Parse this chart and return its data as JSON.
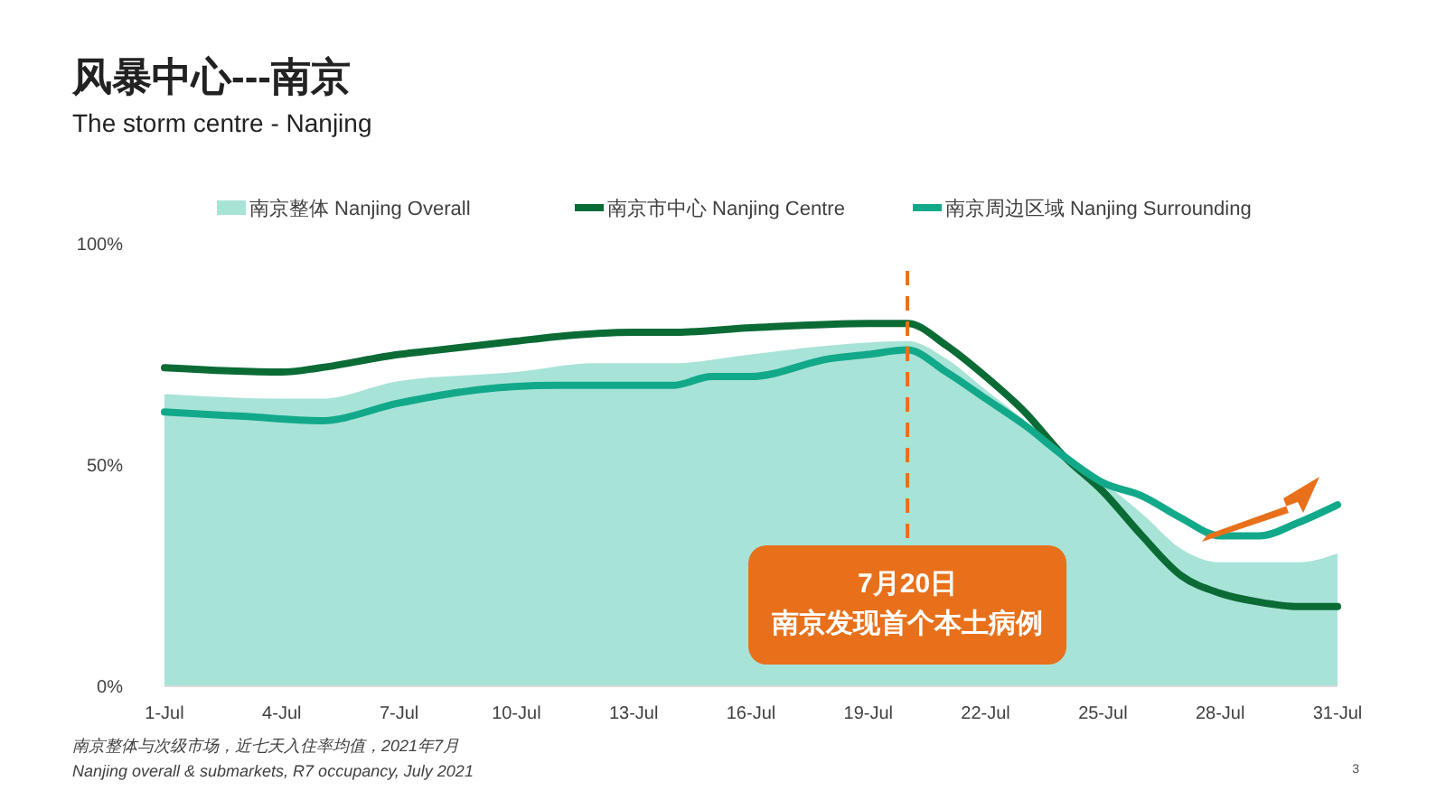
{
  "chart_data": {
    "type": "line",
    "title": "风暴中心---南京",
    "subtitle": "The storm centre - Nanjing",
    "xlim": [
      "--07-01",
      "--07-31"
    ],
    "xticks": [
      {
        "value": "--07-01",
        "label": "1-Jul"
      },
      {
        "value": "--07-04",
        "label": "4-Jul"
      },
      {
        "value": "--07-07",
        "label": "7-Jul"
      },
      {
        "value": "--07-10",
        "label": "10-Jul"
      },
      {
        "value": "--07-13",
        "label": "13-Jul"
      },
      {
        "value": "--07-16",
        "label": "16-Jul"
      },
      {
        "value": "--07-19",
        "label": "19-Jul"
      },
      {
        "value": "--07-22",
        "label": "22-Jul"
      },
      {
        "value": "--07-25",
        "label": "25-Jul"
      },
      {
        "value": "--07-28",
        "label": "28-Jul"
      },
      {
        "value": "--07-31",
        "label": "31-Jul"
      }
    ],
    "ylim": [
      0,
      100
    ],
    "yticks": [
      {
        "value": 0,
        "label": "0%"
      },
      {
        "value": 50,
        "label": "50%"
      },
      {
        "value": 100,
        "label": "100%"
      }
    ],
    "grid": false,
    "legend": "top",
    "series": [
      {
        "name": "南京整体 Nanjing Overall",
        "type": "area",
        "color": "#a8e3d8",
        "x": [
          "--07-01",
          "--07-04",
          "--07-05",
          "--07-07",
          "--07-10",
          "--07-12",
          "--07-14",
          "--07-16",
          "--07-18",
          "--07-20",
          "--07-21",
          "--07-22",
          "--07-23",
          "--07-24",
          "--07-25",
          "--07-26",
          "--07-27",
          "--07-28",
          "--07-29",
          "--07-30",
          "--07-31"
        ],
        "values": [
          66,
          65,
          65,
          69,
          71,
          73,
          73,
          75,
          77,
          78,
          74,
          67,
          60,
          52,
          46,
          39,
          31,
          28,
          28,
          28,
          30
        ]
      },
      {
        "name": "南京市中心 Nanjing Centre",
        "color": "#0b6b35",
        "x": [
          "--07-01",
          "--07-04",
          "--07-05",
          "--07-07",
          "--07-08",
          "--07-10",
          "--07-11",
          "--07-13",
          "--07-14",
          "--07-16",
          "--07-19",
          "--07-20",
          "--07-21",
          "--07-22",
          "--07-23",
          "--07-24",
          "--07-25",
          "--07-26",
          "--07-27",
          "--07-28",
          "--07-29",
          "--07-30",
          "--07-31"
        ],
        "values": [
          72,
          71,
          72,
          75,
          76,
          78,
          79,
          80,
          80,
          81,
          82,
          82,
          77,
          70,
          62,
          52,
          44,
          34,
          25,
          21,
          19,
          18,
          18
        ]
      },
      {
        "name": "南京周边区域 Nanjing Surrounding",
        "color": "#12a98a",
        "x": [
          "--07-01",
          "--07-03",
          "--07-05",
          "--07-07",
          "--07-09",
          "--07-11",
          "--07-12",
          "--07-14",
          "--07-15",
          "--07-16",
          "--07-18",
          "--07-19",
          "--07-20",
          "--07-21",
          "--07-22",
          "--07-23",
          "--07-24",
          "--07-25",
          "--07-26",
          "--07-27",
          "--07-28",
          "--07-29",
          "--07-30",
          "--07-31"
        ],
        "values": [
          62,
          61,
          60,
          64,
          67,
          68,
          68,
          68,
          70,
          70,
          74,
          75,
          76,
          71,
          65,
          59,
          52,
          46,
          43,
          38,
          34,
          34,
          37,
          41
        ]
      }
    ],
    "ref_lines": [
      {
        "axis": "x",
        "value": "--07-20",
        "label": "7月20日",
        "color": "#e8701a",
        "line_style": "dashed"
      }
    ],
    "annotations": [
      "南京发现首个本土病例",
      "南京整体与次级市场，近七天入住率均值，2021年7月",
      "Nanjing overall & submarkets, R7 occupancy, July 2021",
      "3"
    ]
  }
}
